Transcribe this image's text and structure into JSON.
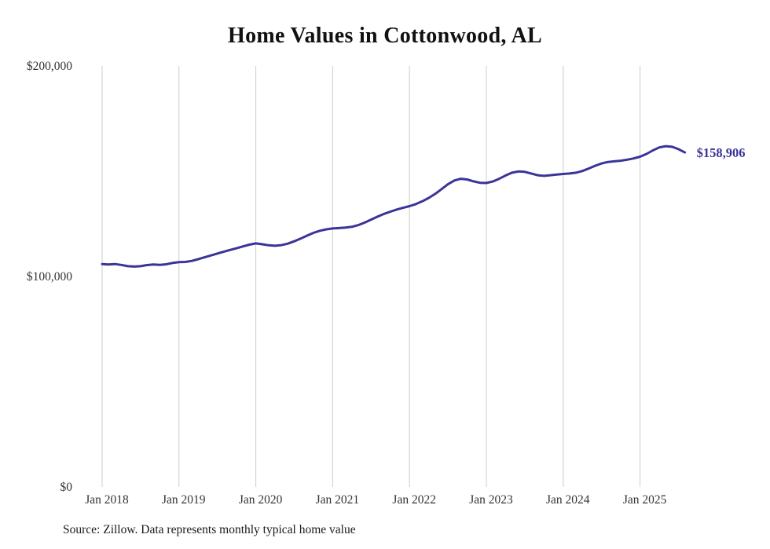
{
  "page": {
    "title": "Home Values in Cottonwood, AL",
    "source_note": "Source: Zillow. Data represents monthly typical home value"
  },
  "chart_data": {
    "type": "line",
    "title": "Home Values in Cottonwood, AL",
    "series_name": "Monthly typical home value",
    "x": [
      "2018-01",
      "2018-02",
      "2018-03",
      "2018-04",
      "2018-05",
      "2018-06",
      "2018-07",
      "2018-08",
      "2018-09",
      "2018-10",
      "2018-11",
      "2018-12",
      "2019-01",
      "2019-02",
      "2019-03",
      "2019-04",
      "2019-05",
      "2019-06",
      "2019-07",
      "2019-08",
      "2019-09",
      "2019-10",
      "2019-11",
      "2019-12",
      "2020-01",
      "2020-02",
      "2020-03",
      "2020-04",
      "2020-05",
      "2020-06",
      "2020-07",
      "2020-08",
      "2020-09",
      "2020-10",
      "2020-11",
      "2020-12",
      "2021-01",
      "2021-02",
      "2021-03",
      "2021-04",
      "2021-05",
      "2021-06",
      "2021-07",
      "2021-08",
      "2021-09",
      "2021-10",
      "2021-11",
      "2021-12",
      "2022-01",
      "2022-02",
      "2022-03",
      "2022-04",
      "2022-05",
      "2022-06",
      "2022-07",
      "2022-08",
      "2022-09",
      "2022-10",
      "2022-11",
      "2022-12",
      "2023-01",
      "2023-02",
      "2023-03",
      "2023-04",
      "2023-05",
      "2023-06",
      "2023-07",
      "2023-08",
      "2023-09",
      "2023-10",
      "2023-11",
      "2023-12",
      "2024-01",
      "2024-02",
      "2024-03",
      "2024-04",
      "2024-05",
      "2024-06",
      "2024-07",
      "2024-08",
      "2024-09",
      "2024-10",
      "2024-11",
      "2024-12",
      "2025-01",
      "2025-02",
      "2025-03",
      "2025-04",
      "2025-05",
      "2025-06",
      "2025-07",
      "2025-08"
    ],
    "values": [
      105900,
      105700,
      105900,
      105500,
      104900,
      104700,
      104900,
      105400,
      105700,
      105500,
      105800,
      106400,
      106800,
      106900,
      107400,
      108200,
      109100,
      110000,
      110900,
      111800,
      112600,
      113400,
      114300,
      115100,
      115700,
      115300,
      114800,
      114600,
      114900,
      115600,
      116700,
      118000,
      119400,
      120700,
      121700,
      122400,
      122800,
      123000,
      123200,
      123600,
      124400,
      125600,
      127000,
      128400,
      129700,
      130800,
      131800,
      132600,
      133400,
      134400,
      135700,
      137300,
      139200,
      141500,
      143800,
      145600,
      146400,
      146100,
      145200,
      144500,
      144400,
      145100,
      146400,
      148000,
      149300,
      149900,
      149700,
      148900,
      148100,
      147800,
      148100,
      148400,
      148700,
      148900,
      149300,
      150100,
      151300,
      152600,
      153700,
      154400,
      154700,
      155000,
      155500,
      156100,
      156900,
      158200,
      159900,
      161300,
      161900,
      161600,
      160500,
      158906
    ],
    "final_value": 158906,
    "end_label": "$158,906",
    "ylim": [
      0,
      200000
    ],
    "y_ticks": [
      {
        "value": 0,
        "label": "$0"
      },
      {
        "value": 100000,
        "label": "$100,000"
      },
      {
        "value": 200000,
        "label": "$200,000"
      }
    ],
    "x_ticks": [
      {
        "year": 2018,
        "label": "Jan 2018"
      },
      {
        "year": 2019,
        "label": "Jan 2019"
      },
      {
        "year": 2020,
        "label": "Jan 2020"
      },
      {
        "year": 2021,
        "label": "Jan 2021"
      },
      {
        "year": 2022,
        "label": "Jan 2022"
      },
      {
        "year": 2023,
        "label": "Jan 2023"
      },
      {
        "year": 2024,
        "label": "Jan 2024"
      },
      {
        "year": 2025,
        "label": "Jan 2025"
      }
    ],
    "line_color": "#3b3498",
    "grid_color": "#cccccc",
    "grid": "vertical-yearly",
    "legend": "none"
  }
}
